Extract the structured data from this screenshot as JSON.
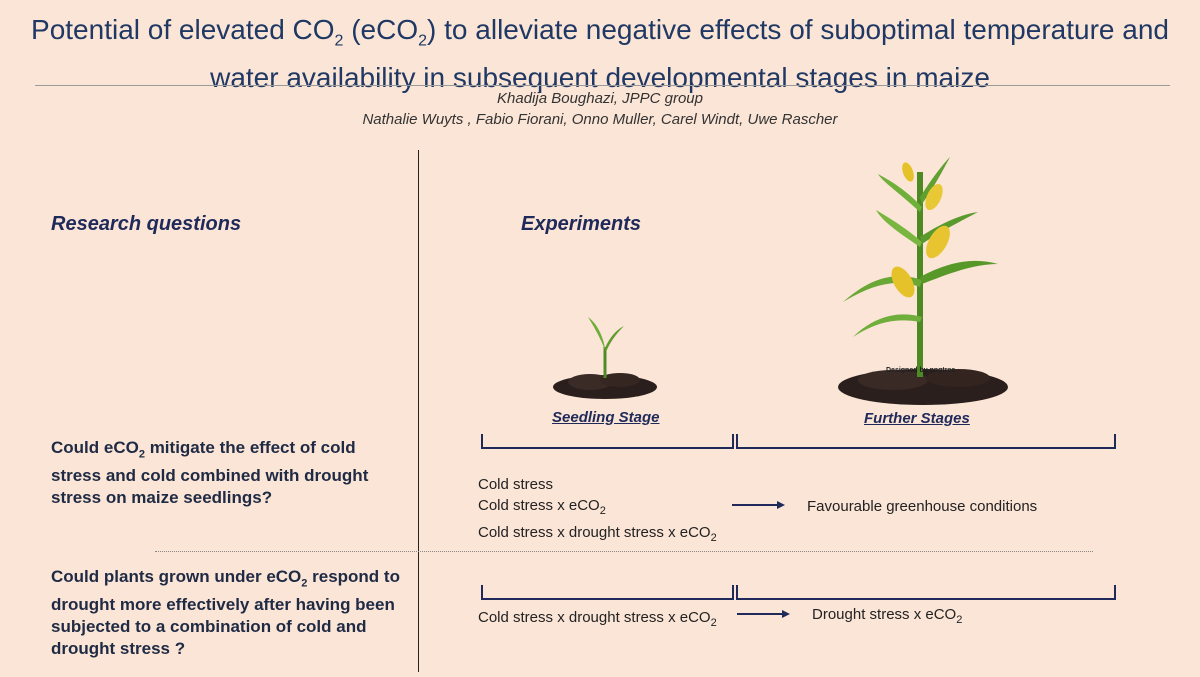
{
  "title": {
    "line1_a": "Potential of elevated CO",
    "line1_sub1": "2",
    "line1_b": " (eCO",
    "line1_sub2": "2",
    "line1_c": ") to alleviate negative effects of suboptimal temperature and",
    "line2": "water availability in subsequent developmental stages in maize"
  },
  "authors": {
    "line1": "Khadija Boughazi, JPPC group",
    "line2": "Nathalie Wuyts , Fabio Fiorani, Onno Muller, Carel Windt, Uwe Rascher"
  },
  "left": {
    "heading": "Research questions",
    "q1": {
      "a": "Could eCO",
      "sub": "2",
      "b": " mitigate the effect of cold stress and cold combined with drought stress on maize seedlings?"
    },
    "q2": {
      "a": "Could plants grown under eCO",
      "sub": "2",
      "b": " respond to drought more effectively after having been subjected to a combination of cold and drought stress ?"
    }
  },
  "right": {
    "heading": "Experiments",
    "seedling_label": "Seedling Stage",
    "further_label": "Further Stages",
    "watermark": "Designed by pngtree",
    "exp1": {
      "l1": "Cold stress",
      "l2a": "Cold stress x eCO",
      "l2sub": "2",
      "l3a": "Cold stress x drought stress x eCO",
      "l3sub": "2",
      "result": "Favourable greenhouse conditions"
    },
    "exp2": {
      "la": "Cold stress x drought stress x eCO",
      "lsub": "2",
      "ra": "Drought stress x eCO",
      "rsub": "2"
    }
  }
}
